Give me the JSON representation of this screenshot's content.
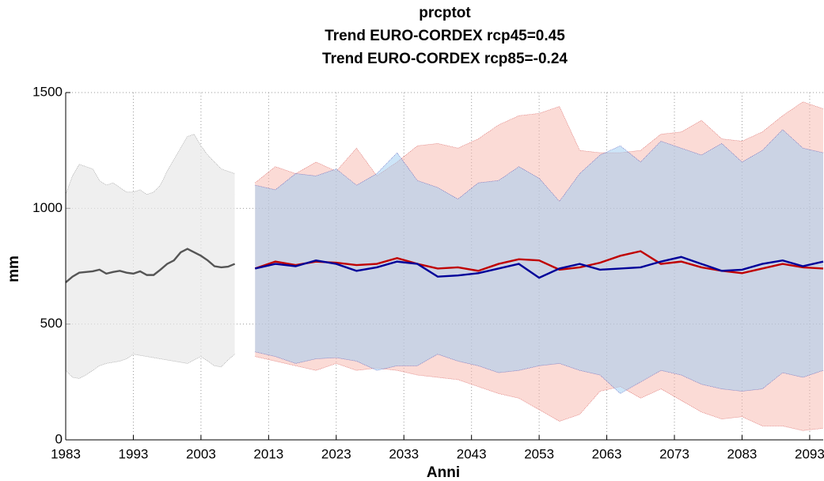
{
  "chart_data": {
    "type": "line",
    "title": "prcptot",
    "subtitle": [
      "Trend EURO-CORDEX rcp45=0.45",
      "Trend EURO-CORDEX rcp85=-0.24"
    ],
    "x_label": "Anni",
    "y_label": "mm",
    "xlim": [
      1983,
      2095
    ],
    "xticks": [
      1983,
      1993,
      2003,
      2013,
      2023,
      2033,
      2043,
      2053,
      2063,
      2073,
      2083,
      2093
    ],
    "ylim": [
      0,
      1500
    ],
    "yticks": [
      0,
      500,
      1000,
      1500
    ],
    "grid": true,
    "series": [
      {
        "color": "#555555",
        "band_color": "#e8e8e8",
        "x": [
          1983,
          1984,
          1985,
          1986,
          1987,
          1988,
          1989,
          1990,
          1991,
          1992,
          1993,
          1994,
          1995,
          1996,
          1997,
          1998,
          1999,
          2000,
          2001,
          2002,
          2003,
          2004,
          2005,
          2006,
          2007,
          2008
        ],
        "values": [
          680,
          705,
          722,
          725,
          728,
          735,
          718,
          725,
          730,
          722,
          718,
          728,
          712,
          712,
          735,
          760,
          775,
          810,
          825,
          810,
          795,
          775,
          750,
          745,
          748,
          760
        ],
        "lower": [
          300,
          270,
          265,
          280,
          300,
          320,
          330,
          335,
          340,
          350,
          370,
          365,
          360,
          355,
          350,
          345,
          340,
          335,
          330,
          345,
          360,
          340,
          320,
          315,
          345,
          370
        ],
        "upper": [
          1060,
          1140,
          1190,
          1180,
          1170,
          1120,
          1100,
          1110,
          1090,
          1070,
          1070,
          1080,
          1060,
          1070,
          1100,
          1160,
          1210,
          1260,
          1310,
          1320,
          1270,
          1230,
          1200,
          1170,
          1160,
          1150
        ]
      },
      {
        "color": "#c00000",
        "band_color": "#f7b8ae",
        "x": [
          2011,
          2014,
          2017,
          2020,
          2023,
          2026,
          2029,
          2032,
          2035,
          2038,
          2041,
          2044,
          2047,
          2050,
          2053,
          2056,
          2059,
          2062,
          2065,
          2068,
          2071,
          2074,
          2077,
          2080,
          2083,
          2086,
          2089,
          2092,
          2095
        ],
        "values": [
          740,
          770,
          755,
          770,
          765,
          755,
          760,
          785,
          760,
          740,
          745,
          730,
          760,
          780,
          775,
          735,
          745,
          765,
          795,
          815,
          760,
          770,
          745,
          730,
          720,
          740,
          760,
          745,
          740
        ],
        "lower": [
          360,
          340,
          320,
          300,
          330,
          300,
          310,
          300,
          280,
          270,
          260,
          230,
          200,
          180,
          130,
          80,
          110,
          210,
          230,
          180,
          220,
          170,
          120,
          90,
          100,
          60,
          60,
          40,
          50
        ],
        "upper": [
          1110,
          1180,
          1150,
          1200,
          1160,
          1260,
          1140,
          1200,
          1270,
          1280,
          1260,
          1300,
          1360,
          1400,
          1410,
          1440,
          1250,
          1240,
          1240,
          1250,
          1320,
          1330,
          1380,
          1300,
          1290,
          1330,
          1400,
          1460,
          1430
        ]
      },
      {
        "color": "#000099",
        "band_color": "#9ccbf2",
        "x": [
          2011,
          2014,
          2017,
          2020,
          2023,
          2026,
          2029,
          2032,
          2035,
          2038,
          2041,
          2044,
          2047,
          2050,
          2053,
          2056,
          2059,
          2062,
          2065,
          2068,
          2071,
          2074,
          2077,
          2080,
          2083,
          2086,
          2089,
          2092,
          2095
        ],
        "values": [
          740,
          760,
          750,
          775,
          760,
          730,
          745,
          770,
          760,
          705,
          710,
          720,
          740,
          760,
          700,
          740,
          760,
          735,
          740,
          745,
          770,
          790,
          760,
          730,
          735,
          760,
          775,
          750,
          770
        ],
        "lower": [
          380,
          360,
          330,
          350,
          355,
          340,
          300,
          320,
          320,
          370,
          340,
          320,
          290,
          300,
          320,
          330,
          300,
          280,
          200,
          250,
          300,
          280,
          240,
          220,
          210,
          220,
          290,
          270,
          300
        ],
        "upper": [
          1100,
          1080,
          1150,
          1140,
          1170,
          1100,
          1150,
          1240,
          1120,
          1090,
          1040,
          1110,
          1120,
          1180,
          1130,
          1030,
          1150,
          1230,
          1270,
          1200,
          1290,
          1260,
          1230,
          1280,
          1200,
          1250,
          1340,
          1260,
          1240
        ]
      }
    ]
  }
}
